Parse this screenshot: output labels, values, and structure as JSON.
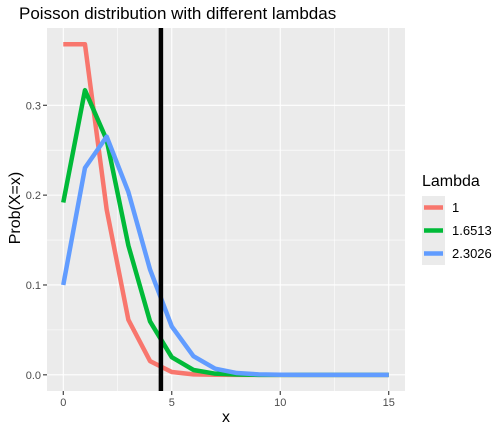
{
  "chart_data": {
    "type": "line",
    "title": "Poisson distribution with different lambdas",
    "xlabel": "x",
    "ylabel": "Prob(X=x)",
    "xlim": [
      -0.75,
      15.75
    ],
    "ylim": [
      -0.018,
      0.386
    ],
    "xticks": [
      0,
      5,
      10,
      15
    ],
    "yticks": [
      0.0,
      0.1,
      0.2,
      0.3
    ],
    "ytick_labels": [
      "0.0",
      "0.1",
      "0.2",
      "0.3"
    ],
    "grid": true,
    "background": "#ebebeb",
    "legend": {
      "title": "Lambda",
      "position": "right"
    },
    "x": [
      0,
      1,
      2,
      3,
      4,
      5,
      6,
      7,
      8,
      9,
      10,
      11,
      12,
      13,
      14,
      15
    ],
    "series": [
      {
        "name": "1",
        "color": "#f8766d",
        "values": [
          0.3679,
          0.3679,
          0.1839,
          0.0613,
          0.0153,
          0.0031,
          0.0005,
          0.0001,
          0.0,
          0.0,
          0.0,
          0.0,
          0.0,
          0.0,
          0.0,
          0.0
        ]
      },
      {
        "name": "1.6513",
        "color": "#00ba38",
        "values": [
          0.1918,
          0.3168,
          0.2615,
          0.144,
          0.0594,
          0.0196,
          0.0054,
          0.0013,
          0.0003,
          0.0,
          0.0,
          0.0,
          0.0,
          0.0,
          0.0,
          0.0
        ]
      },
      {
        "name": "2.3026",
        "color": "#619cff",
        "values": [
          0.1,
          0.2303,
          0.2651,
          0.2035,
          0.1171,
          0.0539,
          0.0207,
          0.0068,
          0.002,
          0.0005,
          0.0001,
          0.0,
          0.0,
          0.0,
          0.0,
          0.0
        ]
      }
    ],
    "vline": {
      "x": 4.5,
      "color": "#000000"
    }
  }
}
